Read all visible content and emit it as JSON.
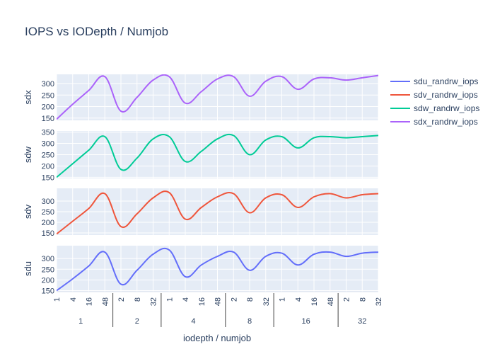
{
  "chart_data": {
    "type": "line",
    "title": "IOPS vs IODepth / Numjob",
    "xlabel": "iodepth / numjob",
    "x": [
      "1/1",
      "1/4",
      "1/16",
      "1/48",
      "2/1",
      "2/8",
      "2/32",
      "4/1",
      "4/4",
      "4/16",
      "4/48",
      "8/1",
      "8/8",
      "8/32",
      "16/1",
      "16/4",
      "16/16",
      "16/48",
      "32/1",
      "32/8",
      "32/32"
    ],
    "x_outer_ticks": [
      {
        "label": "1",
        "start": 0,
        "end": 4
      },
      {
        "label": "2",
        "start": 4,
        "end": 7
      },
      {
        "label": "4",
        "start": 7,
        "end": 11
      },
      {
        "label": "8",
        "start": 11,
        "end": 14
      },
      {
        "label": "16",
        "start": 14,
        "end": 18
      },
      {
        "label": "32",
        "start": 18,
        "end": 21
      }
    ],
    "x_inner_ticks": [
      {
        "label": "1",
        "index": 0
      },
      {
        "label": "4",
        "index": 1
      },
      {
        "label": "16",
        "index": 2
      },
      {
        "label": "48",
        "index": 3
      },
      {
        "label": "2",
        "index": 4
      },
      {
        "label": "8",
        "index": 5
      },
      {
        "label": "32",
        "index": 6
      },
      {
        "label": "1",
        "index": 7
      },
      {
        "label": "4",
        "index": 8
      },
      {
        "label": "16",
        "index": 9
      },
      {
        "label": "48",
        "index": 10
      },
      {
        "label": "2",
        "index": 11
      },
      {
        "label": "8",
        "index": 12
      },
      {
        "label": "32",
        "index": 13
      },
      {
        "label": "1",
        "index": 14
      },
      {
        "label": "4",
        "index": 15
      },
      {
        "label": "16",
        "index": 16
      },
      {
        "label": "48",
        "index": 17
      },
      {
        "label": "2",
        "index": 18
      },
      {
        "label": "8",
        "index": 19
      },
      {
        "label": "32",
        "index": 20
      }
    ],
    "legend_position": "right",
    "grid": true,
    "series": [
      {
        "name": "sdu_randrw_iops",
        "color": "#636efa",
        "ylabel": "sdu",
        "ylim": [
          145,
          360
        ],
        "yticks": [
          150,
          200,
          250,
          300
        ],
        "values": [
          150,
          205,
          265,
          330,
          180,
          245,
          320,
          340,
          215,
          270,
          310,
          330,
          245,
          310,
          325,
          270,
          320,
          330,
          310,
          325,
          330
        ]
      },
      {
        "name": "sdv_randrw_iops",
        "color": "#ef553b",
        "ylabel": "sdv",
        "ylim": [
          140,
          360
        ],
        "yticks": [
          150,
          200,
          250,
          300
        ],
        "values": [
          145,
          205,
          265,
          335,
          180,
          240,
          315,
          340,
          215,
          270,
          320,
          335,
          245,
          315,
          330,
          270,
          320,
          335,
          315,
          330,
          335
        ]
      },
      {
        "name": "sdw_randrw_iops",
        "color": "#00cc96",
        "ylabel": "sdw",
        "ylim": [
          145,
          355
        ],
        "yticks": [
          150,
          200,
          250,
          300,
          350
        ],
        "values": [
          150,
          210,
          270,
          330,
          185,
          235,
          320,
          330,
          220,
          265,
          320,
          335,
          250,
          315,
          330,
          280,
          325,
          330,
          325,
          330,
          335
        ]
      },
      {
        "name": "sdx_randrw_iops",
        "color": "#ab63fa",
        "ylabel": "sdx",
        "ylim": [
          140,
          340
        ],
        "yticks": [
          150,
          200,
          250,
          300
        ],
        "values": [
          145,
          210,
          270,
          330,
          180,
          240,
          315,
          330,
          215,
          265,
          320,
          330,
          245,
          310,
          330,
          275,
          320,
          325,
          315,
          325,
          335
        ]
      }
    ]
  }
}
